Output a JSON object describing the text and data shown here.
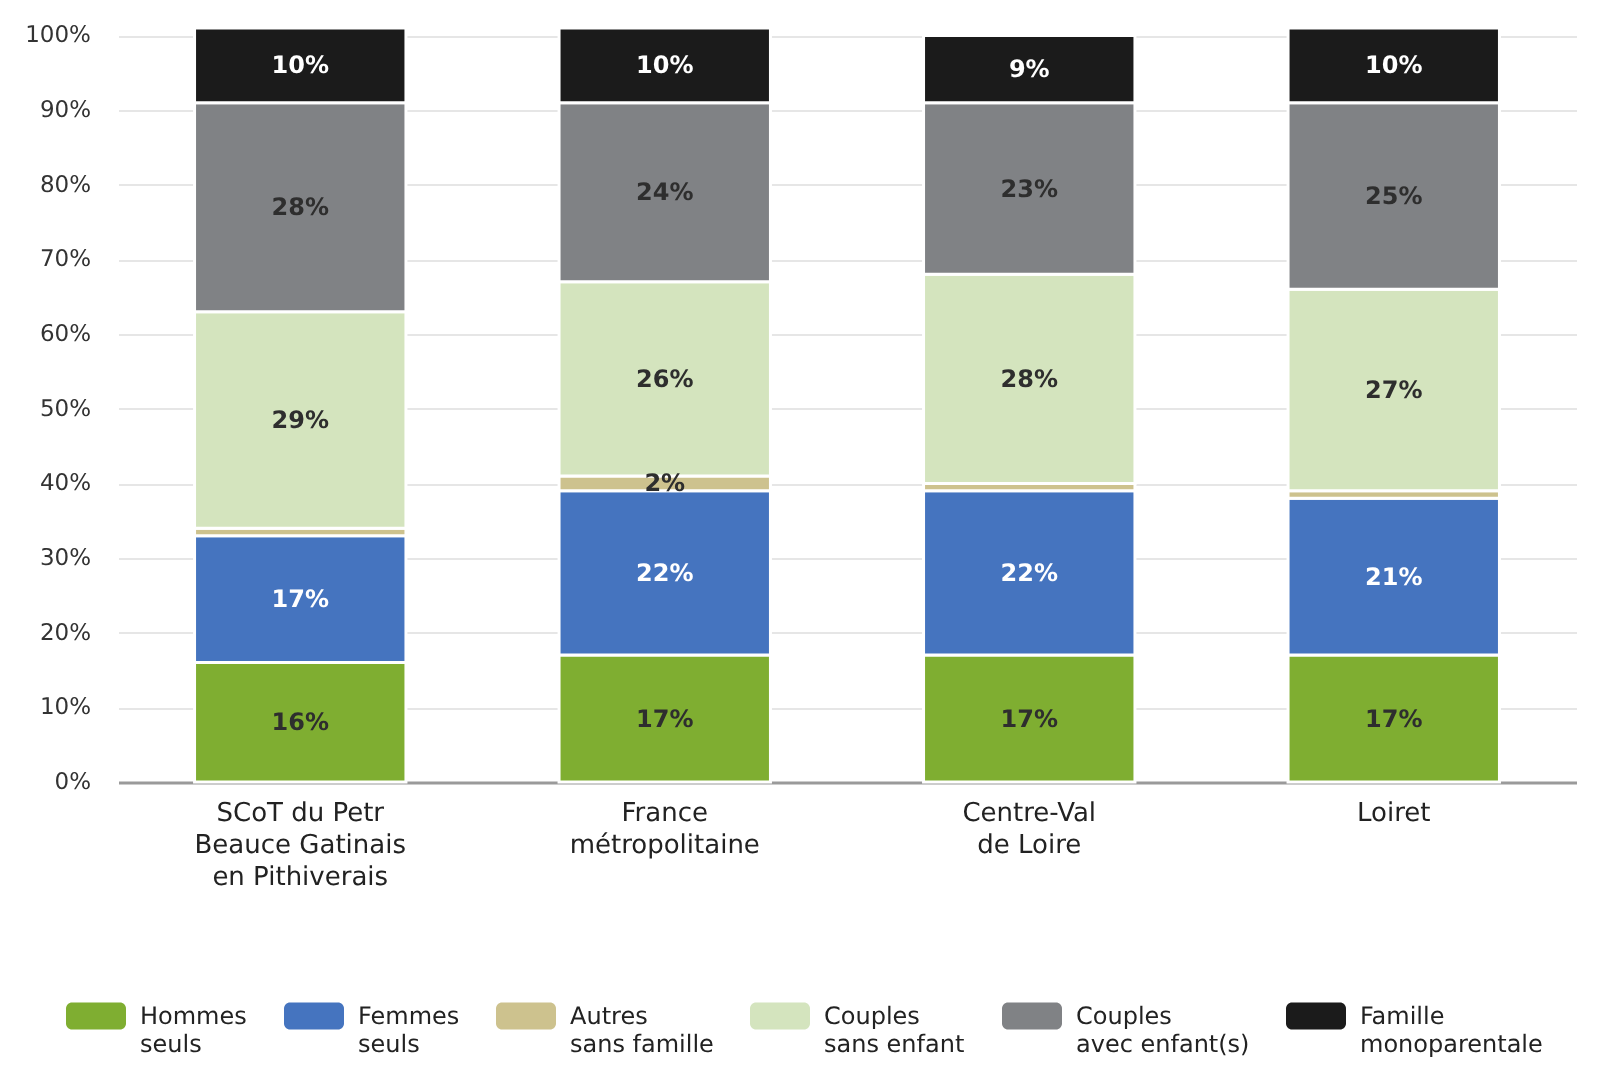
{
  "chart_data": {
    "type": "bar",
    "stacked": true,
    "categories": [
      "SCoT du Petr\nBeauce Gatinais\nen Pithiverais",
      "France\nmétropolitaine",
      "Centre-Val\nde Loire",
      "Loiret"
    ],
    "series": [
      {
        "name": "Hommes\nseuls",
        "color": "#7fae31",
        "values": [
          16,
          17,
          17,
          17
        ],
        "value_labels": [
          "16%",
          "17%",
          "17%",
          "17%"
        ]
      },
      {
        "name": "Femmes\nseuls",
        "color": "#4574bf",
        "values": [
          17,
          22,
          22,
          21
        ],
        "value_labels": [
          "17%",
          "22%",
          "22%",
          "21%"
        ]
      },
      {
        "name": "Autres\nsans famille",
        "color": "#cdc28e",
        "values": [
          1,
          2,
          1,
          1
        ],
        "value_labels": [
          null,
          "2%",
          null,
          null
        ]
      },
      {
        "name": "Couples\nsans enfant",
        "color": "#d4e4be",
        "values": [
          29,
          26,
          28,
          27
        ],
        "value_labels": [
          "29%",
          "26%",
          "28%",
          "27%"
        ]
      },
      {
        "name": "Couples\navec enfant(s)",
        "color": "#808285",
        "values": [
          28,
          24,
          23,
          25
        ],
        "value_labels": [
          "28%",
          "24%",
          "23%",
          "25%"
        ]
      },
      {
        "name": "Famille\nmonoparentale",
        "color": "#1b1b1b",
        "values": [
          10,
          10,
          9,
          10
        ],
        "value_labels": [
          "10%",
          "10%",
          "9%",
          "10%"
        ]
      }
    ],
    "ylim": [
      0,
      101
    ],
    "yticks": [
      {
        "value": 0,
        "label": "0%"
      },
      {
        "value": 10,
        "label": "10%"
      },
      {
        "value": 20,
        "label": "20%"
      },
      {
        "value": 30,
        "label": "30%"
      },
      {
        "value": 40,
        "label": "40%"
      },
      {
        "value": 50,
        "label": "50%"
      },
      {
        "value": 60,
        "label": "60%"
      },
      {
        "value": 70,
        "label": "70%"
      },
      {
        "value": 80,
        "label": "80%"
      },
      {
        "value": 90,
        "label": "90%"
      },
      {
        "value": 100,
        "label": "100%"
      }
    ],
    "grid": "y",
    "legend": "bottom"
  }
}
